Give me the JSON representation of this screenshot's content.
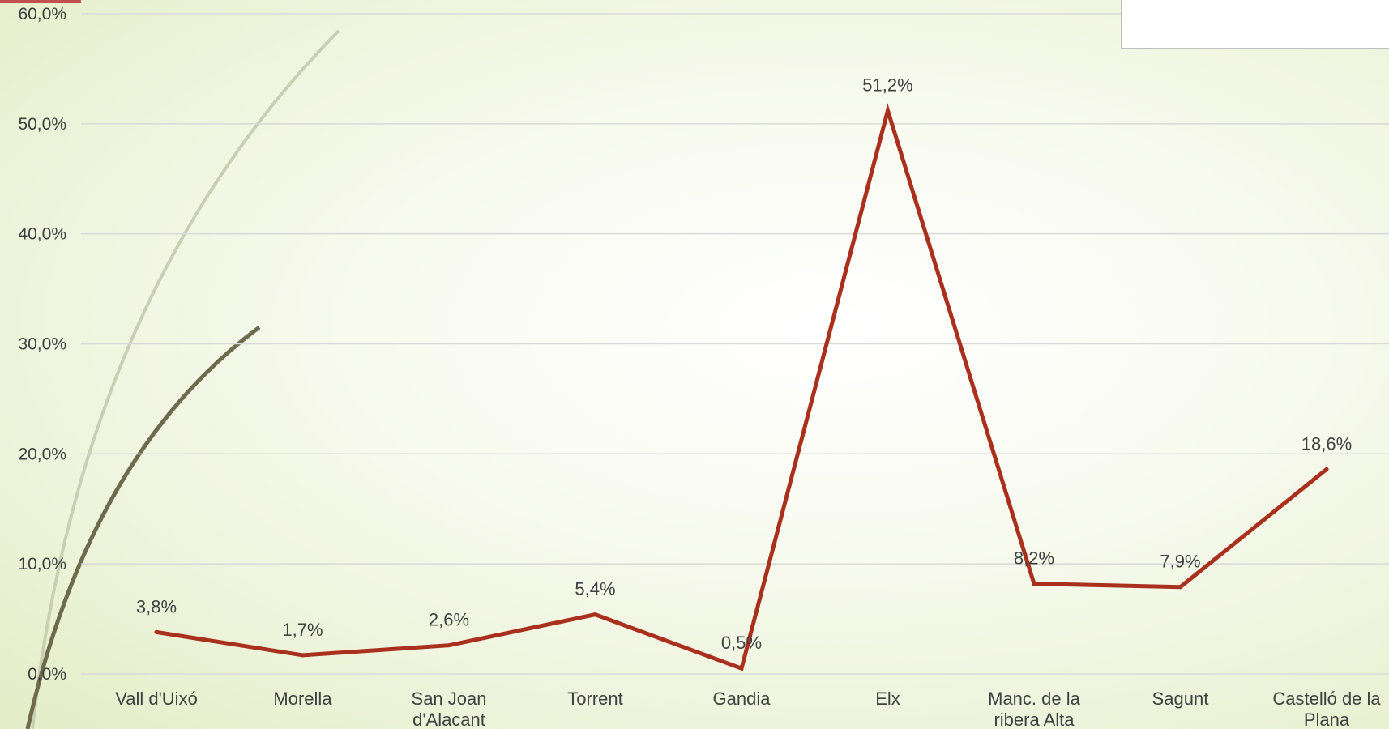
{
  "colors": {
    "line": "#a8301c",
    "gridline": "#d9d9d9",
    "text": "#404040",
    "accent": "#c0504d",
    "arc_light": "#c9cfb2",
    "arc_dark": "#6e6a4e"
  },
  "chart_data": {
    "type": "line",
    "title": "",
    "xlabel": "",
    "ylabel": "",
    "categories": [
      [
        "Vall d'Uixó"
      ],
      [
        "Morella"
      ],
      [
        "San Joan",
        "d'Alacant"
      ],
      [
        "Torrent"
      ],
      [
        "Gandia"
      ],
      [
        "Elx"
      ],
      [
        "Manc. de la",
        "ribera Alta"
      ],
      [
        "Sagunt"
      ],
      [
        "Castelló de la",
        "Plana"
      ]
    ],
    "series": [
      {
        "values": [
          3.8,
          1.7,
          2.6,
          5.4,
          0.5,
          51.2,
          8.2,
          7.9,
          18.6
        ],
        "data_labels": [
          "3,8%",
          "1,7%",
          "2,6%",
          "5,4%",
          "0,5%",
          "51,2%",
          "8,2%",
          "7,9%",
          "18,6%"
        ]
      }
    ],
    "ylim": [
      0,
      60
    ],
    "yticks": [
      0,
      10,
      20,
      30,
      40,
      50,
      60
    ],
    "ytick_labels": [
      "0,0%",
      "10,0%",
      "20,0%",
      "30,0%",
      "40,0%",
      "50,0%",
      "60,0%"
    ],
    "grid": true,
    "legend": "top-right"
  }
}
